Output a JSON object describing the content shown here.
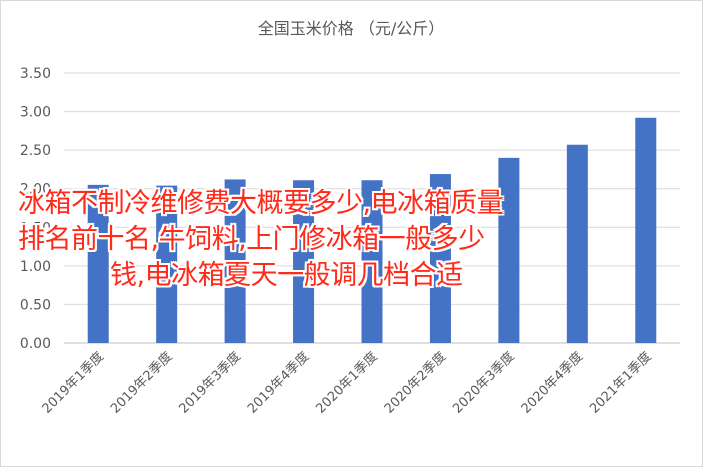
{
  "chart_data": {
    "type": "bar",
    "title": "全国玉米价格 （元/公斤）",
    "categories": [
      "2019年1季度",
      "2019年2季度",
      "2019年3季度",
      "2019年4季度",
      "2020年1季度",
      "2020年2季度",
      "2020年3季度",
      "2020年4季度",
      "2021年1季度"
    ],
    "values": [
      2.05,
      2.04,
      2.12,
      2.11,
      2.11,
      2.19,
      2.4,
      2.57,
      2.92
    ],
    "ylim": [
      0,
      3.5
    ],
    "yticks": [
      "0.00",
      "0.50",
      "1.00",
      "1.50",
      "2.00",
      "2.50",
      "3.00",
      "3.50"
    ],
    "grid": true,
    "bar_color": "#4472c4"
  },
  "overlay": {
    "line1": "冰箱不制冷维修费大概要多少,电冰箱质量",
    "line2": "排名前十名,牛饲料,上门修冰箱一般多少",
    "line3": "钱,电冰箱夏天一般调几档合适",
    "color": "#ff2a1a"
  }
}
